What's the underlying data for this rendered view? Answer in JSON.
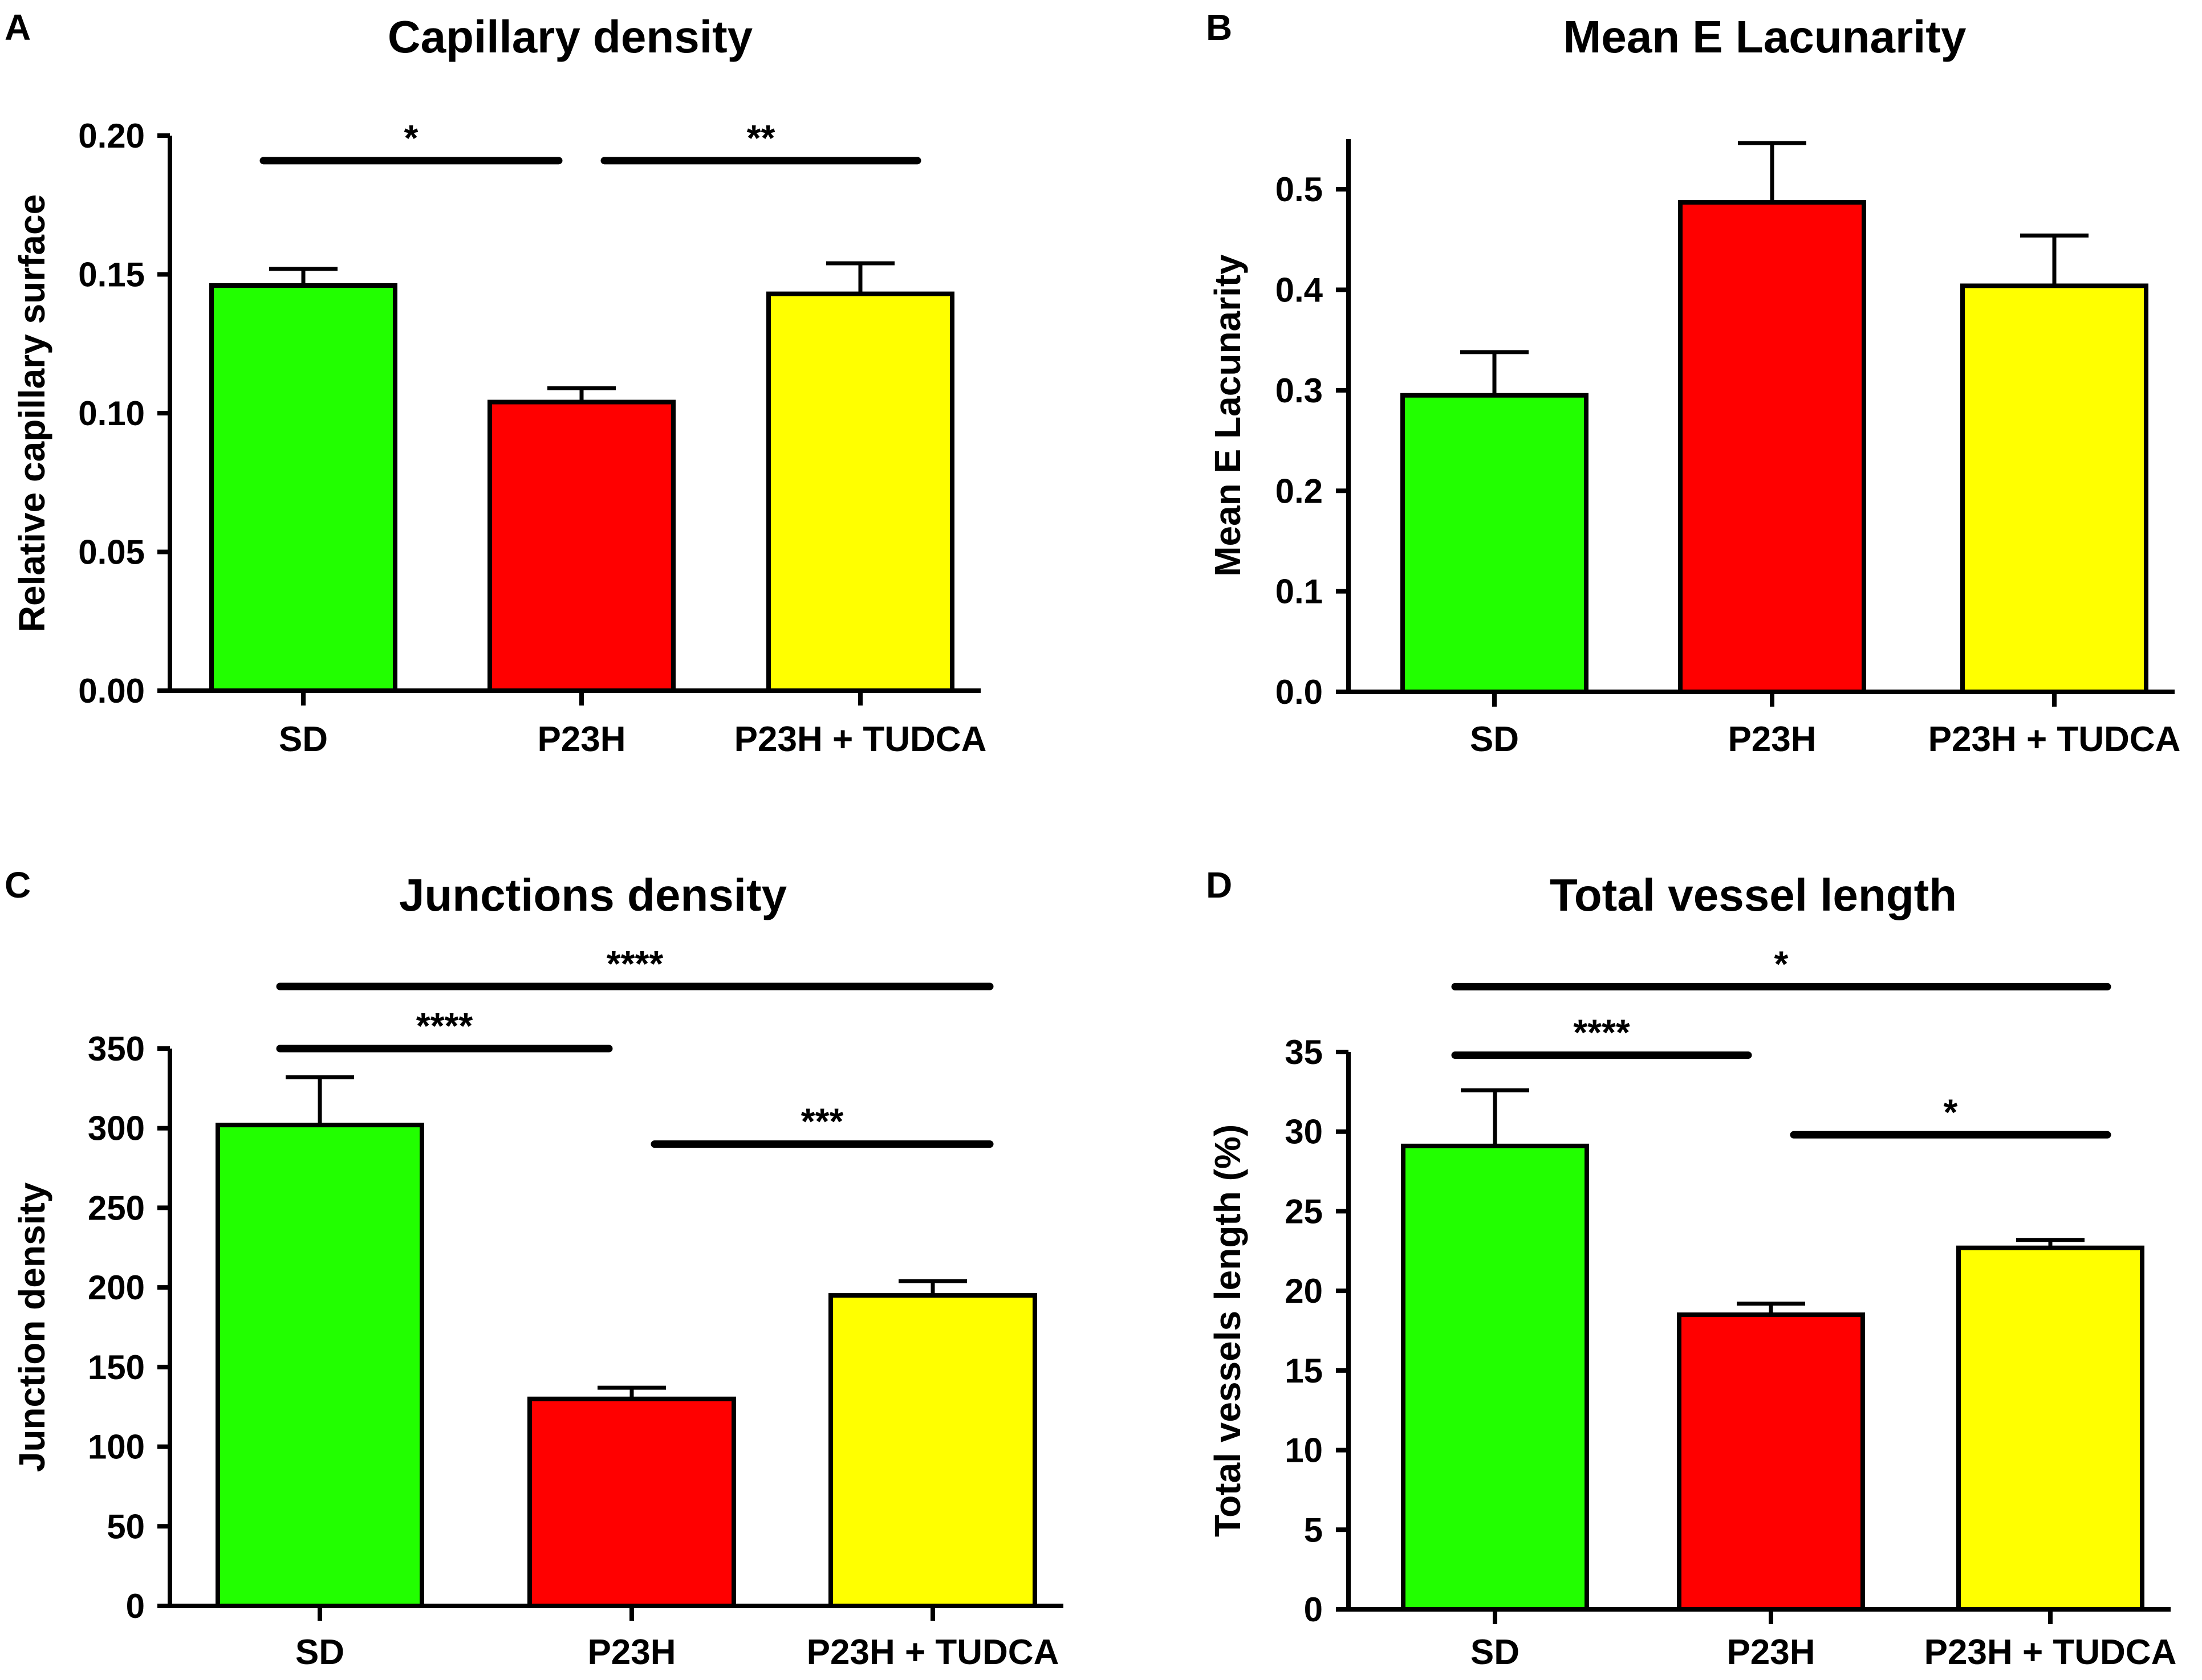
{
  "chart_data": [
    {
      "panel": "A",
      "type": "bar",
      "title": "Capillary density",
      "xlabel": "",
      "ylabel": "Relative capillary surface",
      "ylim": [
        0,
        0.2
      ],
      "yticks": [
        "0.00",
        "0.05",
        "0.10",
        "0.15",
        "0.20"
      ],
      "categories": [
        "SD",
        "P23H",
        "P23H + TUDCA"
      ],
      "values": [
        0.146,
        0.104,
        0.143
      ],
      "errors": [
        0.006,
        0.005,
        0.011
      ],
      "colors": [
        "#22ff00",
        "#ff0000",
        "#ffff00"
      ],
      "significance": [
        {
          "from": 0,
          "to": 1,
          "label": "*",
          "y": 0.191
        },
        {
          "from": 1,
          "to": 2,
          "label": "**",
          "y": 0.191
        }
      ]
    },
    {
      "panel": "B",
      "type": "bar",
      "title": "Mean E Lacunarity",
      "xlabel": "",
      "ylabel": "Mean E Lacunarity",
      "ylim": [
        0,
        0.55
      ],
      "yticks": [
        "0.0",
        "0.1",
        "0.2",
        "0.3",
        "0.4",
        "0.5"
      ],
      "categories": [
        "SD",
        "P23H",
        "P23H + TUDCA"
      ],
      "values": [
        0.295,
        0.487,
        0.404
      ],
      "errors": [
        0.043,
        0.059,
        0.05
      ],
      "colors": [
        "#22ff00",
        "#ff0000",
        "#ffff00"
      ],
      "significance": []
    },
    {
      "panel": "C",
      "type": "bar",
      "title": "Junctions density",
      "xlabel": "",
      "ylabel": "Junction density",
      "ylim": [
        0,
        350
      ],
      "yticks": [
        "0",
        "50",
        "100",
        "150",
        "200",
        "250",
        "300",
        "350"
      ],
      "categories": [
        "SD",
        "P23H",
        "P23H + TUDCA"
      ],
      "values": [
        302,
        130,
        195
      ],
      "errors": [
        30,
        7,
        9
      ],
      "colors": [
        "#22ff00",
        "#ff0000",
        "#ffff00"
      ],
      "significance": [
        {
          "from": 0,
          "to": 2,
          "label": "****",
          "y": 389
        },
        {
          "from": 0,
          "to": 1,
          "label": "****",
          "y": 350
        },
        {
          "from": 1,
          "to": 2,
          "label": "***",
          "y": 290
        }
      ]
    },
    {
      "panel": "D",
      "type": "bar",
      "title": "Total vessel length",
      "xlabel": "",
      "ylabel": "Total vessels length (%)",
      "ylim": [
        0,
        35
      ],
      "yticks": [
        "0",
        "5",
        "10",
        "15",
        "20",
        "25",
        "30",
        "35"
      ],
      "categories": [
        "SD",
        "P23H",
        "P23H + TUDCA"
      ],
      "values": [
        29.1,
        18.5,
        22.7
      ],
      "errors": [
        3.5,
        0.7,
        0.5
      ],
      "colors": [
        "#22ff00",
        "#ff0000",
        "#ffff00"
      ],
      "significance": [
        {
          "from": 0,
          "to": 2,
          "label": "*",
          "y": 39.1
        },
        {
          "from": 0,
          "to": 1,
          "label": "****",
          "y": 34.8
        },
        {
          "from": 1,
          "to": 2,
          "label": "*",
          "y": 29.8
        }
      ]
    }
  ]
}
